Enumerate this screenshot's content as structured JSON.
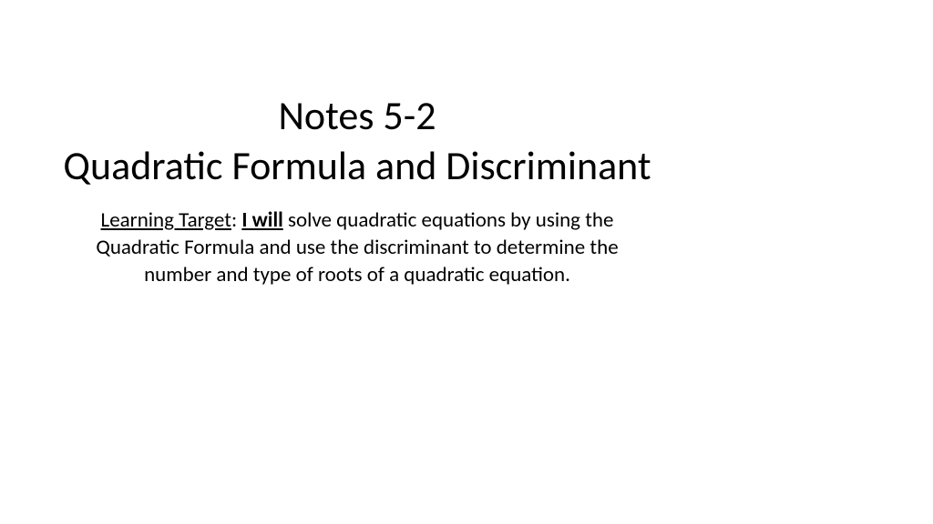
{
  "slide": {
    "title_line1": "Notes 5-2",
    "title_line2": "Quadratic Formula and Discriminant",
    "learning_target_label": "Learning Target",
    "learning_target_emphasis": "I will",
    "learning_target_body": " solve quadratic equations by using the Quadratic Formula and use the discriminant to determine the number and type of roots of a quadratic equation."
  },
  "style": {
    "background_color": "#ffffff",
    "text_color": "#000000",
    "title_fontsize": 44,
    "subtitle_fontsize": 23,
    "font_family": "Calibri"
  }
}
